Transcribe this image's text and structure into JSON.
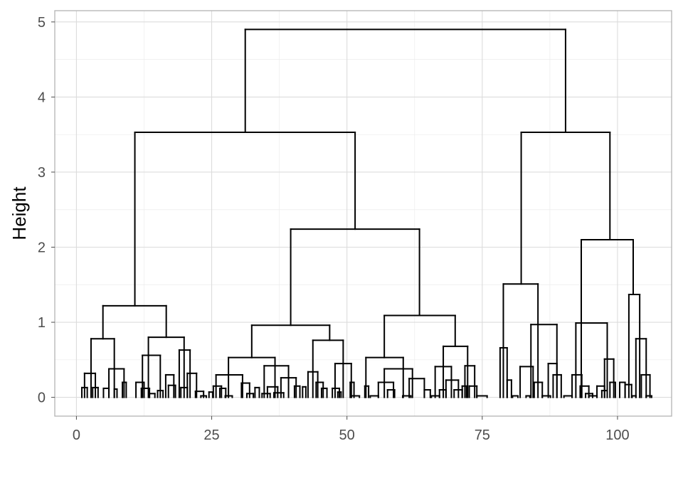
{
  "chart_data": {
    "type": "dendrogram",
    "title": "",
    "xlabel": "",
    "ylabel": "Height",
    "xlim": [
      -4,
      110
    ],
    "ylim": [
      -0.25,
      5.15
    ],
    "x_ticks": [
      0,
      25,
      50,
      75,
      100
    ],
    "y_ticks": [
      0,
      1,
      2,
      3,
      4,
      5
    ],
    "grid": true,
    "colors": {
      "branch": "#000000",
      "grid": "#dcdcdc",
      "frame": "#b3b3b3",
      "tick_label": "#4d4d4d"
    },
    "leaf_count": 105,
    "root_height": 4.9,
    "merges": [
      {
        "x": 31.2,
        "h": 4.9,
        "to": 90.4
      },
      {
        "x": 10.8,
        "h": 3.53,
        "to": 51.5
      },
      {
        "x": 82.2,
        "h": 3.53,
        "to": 98.6
      },
      {
        "x": 39.6,
        "h": 2.24,
        "to": 63.4
      },
      {
        "x": 93.3,
        "h": 2.1,
        "to": 102.9
      },
      {
        "x": 4.9,
        "h": 1.22,
        "to": 16.6
      },
      {
        "x": 78.9,
        "h": 1.51,
        "to": 85.3
      },
      {
        "x": 56.9,
        "h": 1.09,
        "to": 70.0
      },
      {
        "x": 32.4,
        "h": 0.96,
        "to": 46.8
      },
      {
        "x": 102.1,
        "h": 1.37,
        "to": 104.1
      },
      {
        "x": 2.7,
        "h": 0.78,
        "to": 7.0
      },
      {
        "x": 13.3,
        "h": 0.8,
        "to": 19.9
      },
      {
        "x": 84.0,
        "h": 0.97,
        "to": 88.8
      },
      {
        "x": 92.3,
        "h": 0.99,
        "to": 98.1
      },
      {
        "x": 28.1,
        "h": 0.53,
        "to": 36.7
      },
      {
        "x": 43.7,
        "h": 0.76,
        "to": 49.3
      },
      {
        "x": 53.5,
        "h": 0.53,
        "to": 60.4
      },
      {
        "x": 67.8,
        "h": 0.68,
        "to": 72.3
      }
    ]
  }
}
